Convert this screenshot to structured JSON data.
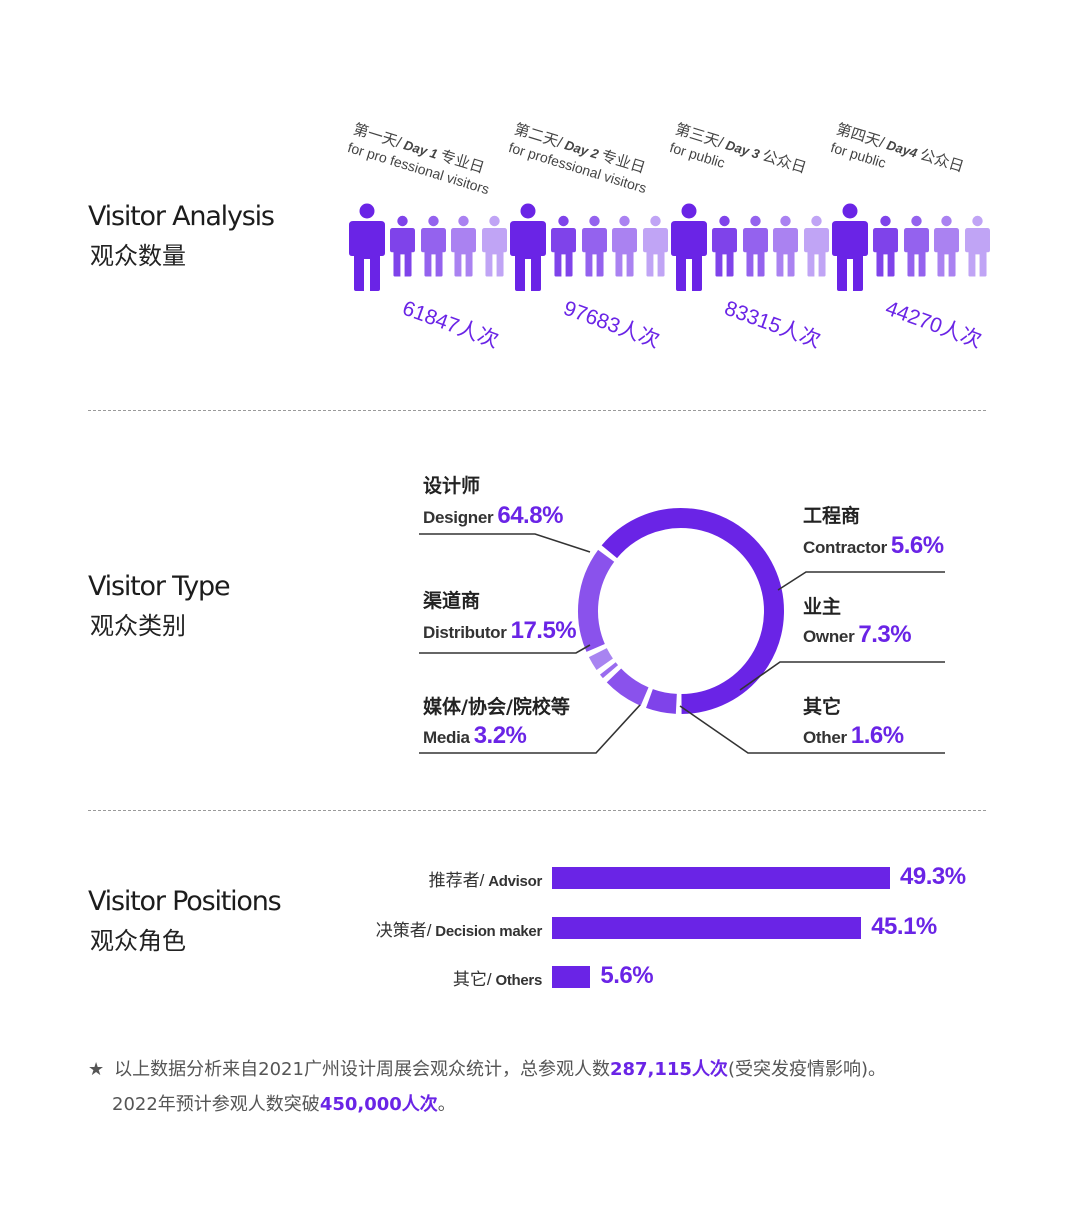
{
  "colors": {
    "accent": "#6a24e6",
    "shades": [
      "#6a24e6",
      "#7f43ea",
      "#9462ee",
      "#aa82f1",
      "#c0a4f5"
    ]
  },
  "sections": {
    "analysis": {
      "title_en": "Visitor Analysis",
      "title_cn": "观众数量"
    },
    "type": {
      "title_en": "Visitor Type",
      "title_cn": "观众类别"
    },
    "positions": {
      "title_en": "Visitor Positions",
      "title_cn": "观众角色"
    }
  },
  "note": {
    "line1_pre": "以上数据分析来自2021广州设计周展会观众统计，总参观人数",
    "line1_bold": "287,115人次",
    "line1_post": "(受突发疫情影响)。",
    "line2_pre": "2022年预计参观人数突破",
    "line2_bold": "450,000人次",
    "line2_post": "。",
    "star": "★"
  },
  "chart_data": [
    {
      "type": "bar",
      "title": "Visitor Analysis",
      "subtitle": "观众数量",
      "categories": [
        "第一天/ Day 1 专业日",
        "第二天/ Day 2 专业日",
        "第三天/ Day 3 公众日",
        "第四天/ Day4 公众日"
      ],
      "category_day_cn": [
        "第一天/",
        "第二天/",
        "第三天/",
        "第四天/"
      ],
      "category_day_en": [
        "Day 1",
        "Day 2",
        "Day 3",
        "Day4"
      ],
      "category_type_cn": [
        "专业日",
        "专业日",
        "公众日",
        "公众日"
      ],
      "category_sub": [
        "for pro fessional visitors",
        "for professional visitors",
        "for public",
        "for public"
      ],
      "values": [
        61847,
        97683,
        83315,
        44270
      ],
      "value_labels": [
        "61847人次",
        "97683人次",
        "83315人次",
        "44270人次"
      ]
    },
    {
      "type": "pie",
      "title": "Visitor Type",
      "subtitle": "观众类别",
      "slices": [
        {
          "label_cn": "设计师",
          "label_en": "Designer",
          "value": 64.8,
          "pct": "64.8%"
        },
        {
          "label_cn": "工程商",
          "label_en": "Contractor",
          "value": 5.6,
          "pct": "5.6%"
        },
        {
          "label_cn": "业主",
          "label_en": "Owner",
          "value": 7.3,
          "pct": "7.3%"
        },
        {
          "label_cn": "其它",
          "label_en": "Other",
          "value": 1.6,
          "pct": "1.6%"
        },
        {
          "label_cn": "媒体/协会/院校等",
          "label_en": "Media",
          "value": 3.2,
          "pct": "3.2%"
        },
        {
          "label_cn": "渠道商",
          "label_en": "Distributor",
          "value": 17.5,
          "pct": "17.5%"
        }
      ]
    },
    {
      "type": "bar",
      "orientation": "horizontal",
      "title": "Visitor Positions",
      "subtitle": "观众角色",
      "categories": [
        {
          "cn": "推荐者/",
          "en": "Advisor"
        },
        {
          "cn": "决策者/",
          "en": "Decision maker"
        },
        {
          "cn": "其它/",
          "en": "Others"
        }
      ],
      "values": [
        49.3,
        45.1,
        5.6
      ],
      "value_labels": [
        "49.3%",
        "45.1%",
        "5.6%"
      ]
    }
  ]
}
